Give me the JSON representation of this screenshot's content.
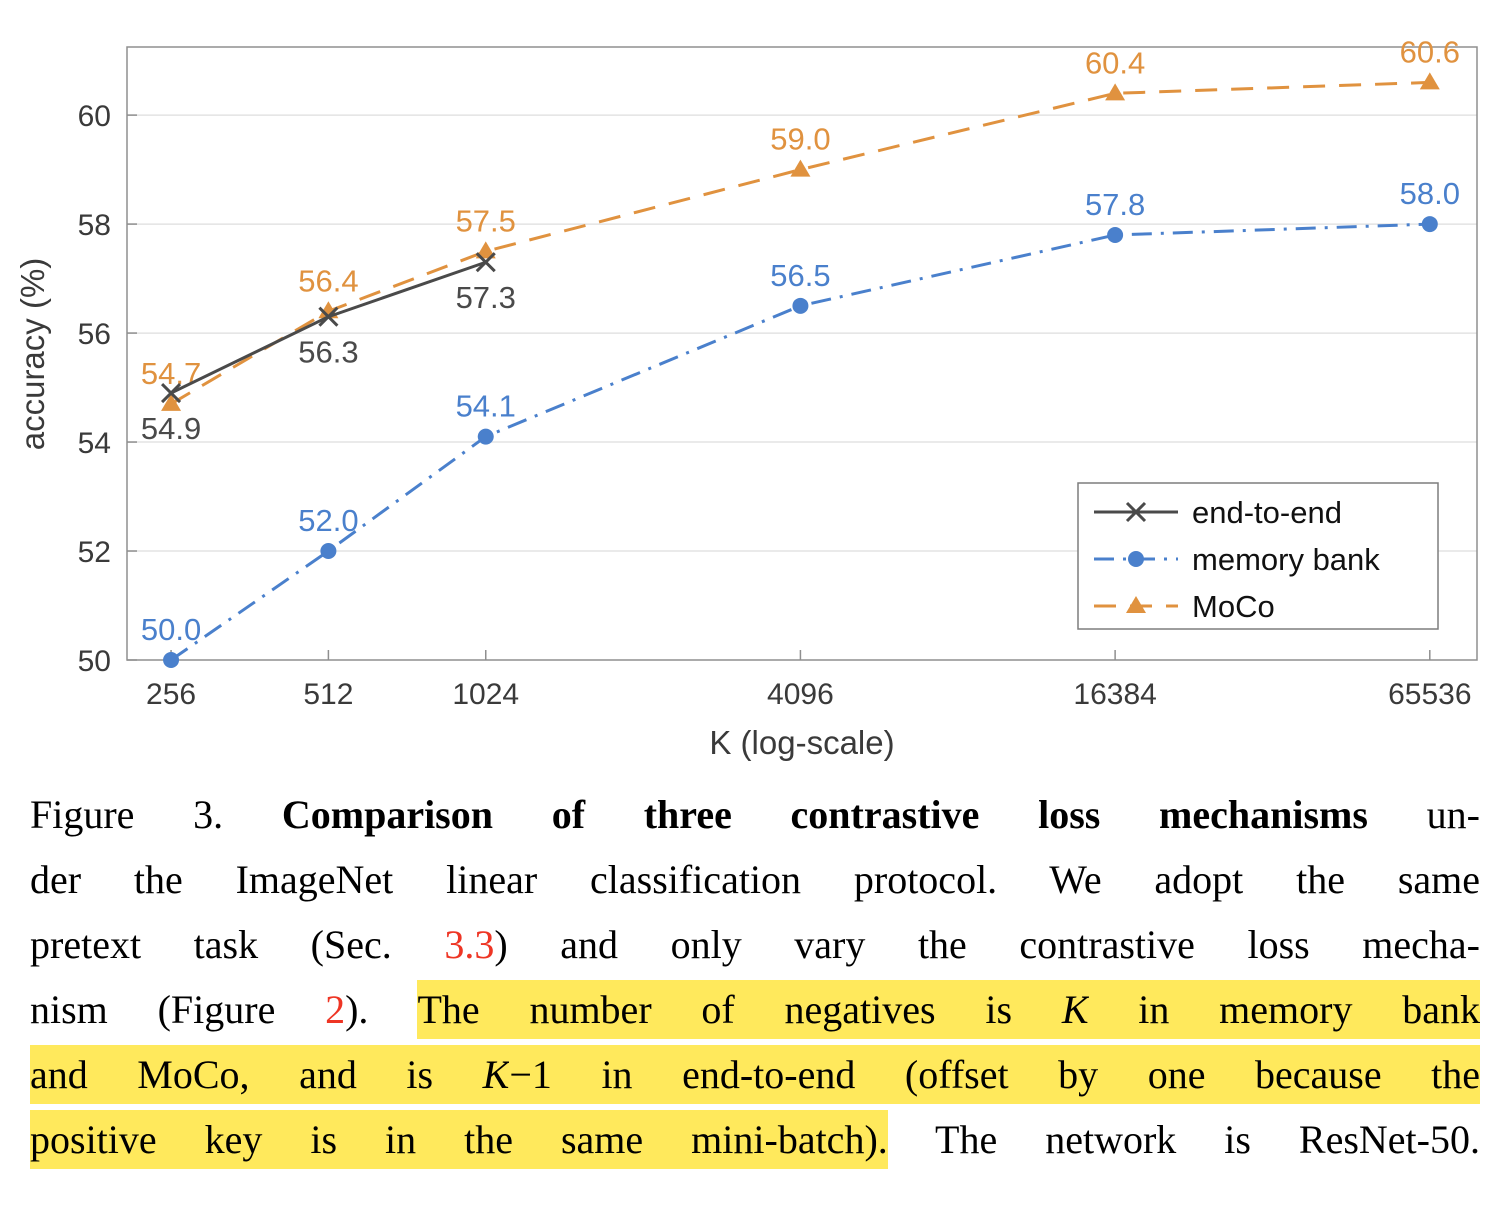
{
  "chart_data": {
    "type": "line",
    "title": "",
    "xlabel": "K (log-scale)",
    "ylabel": "accuracy (%)",
    "x_scale": "log2",
    "xlim_log2": [
      7.72,
      16.3
    ],
    "ylim": [
      50,
      61.25
    ],
    "xticks": [
      256,
      512,
      1024,
      4096,
      16384,
      65536
    ],
    "yticks": [
      50,
      52,
      54,
      56,
      58,
      60
    ],
    "grid": "horizontal",
    "legend_position": "inside-right-lower",
    "series": [
      {
        "name": "end-to-end",
        "color": "#4a4a4a",
        "line_style": "solid",
        "marker": "x",
        "label_side": "below",
        "x": [
          256,
          512,
          1024
        ],
        "values": [
          54.9,
          56.3,
          57.3
        ]
      },
      {
        "name": "memory bank",
        "color": "#4a80cc",
        "line_style": "dash-dot",
        "marker": "circle",
        "label_side": "above",
        "x": [
          256,
          512,
          1024,
          4096,
          16384,
          65536
        ],
        "values": [
          50.0,
          52.0,
          54.1,
          56.5,
          57.8,
          58.0
        ]
      },
      {
        "name": "MoCo",
        "color": "#e0923f",
        "line_style": "dashed",
        "marker": "triangle",
        "label_side": "above",
        "x": [
          256,
          512,
          1024,
          4096,
          16384,
          65536
        ],
        "values": [
          54.7,
          56.4,
          57.5,
          59.0,
          60.4,
          60.6
        ]
      }
    ]
  },
  "caption": {
    "highlight_color": "#ffe95c",
    "link_color": "#ee3524",
    "lines": [
      [
        {
          "t": "Figure 3. "
        },
        {
          "t": "Comparison of three contrastive loss mechanisms",
          "s": "bold"
        },
        {
          "t": " un-"
        }
      ],
      [
        {
          "t": "der the ImageNet linear classification protocol.  We adopt the same"
        }
      ],
      [
        {
          "t": "pretext task (Sec. "
        },
        {
          "t": "3.3",
          "s": "link"
        },
        {
          "t": ") and only vary the contrastive loss mecha-"
        }
      ],
      [
        {
          "t": "nism (Figure "
        },
        {
          "t": "2",
          "s": "link"
        },
        {
          "t": ").  "
        },
        {
          "t": "The number of negatives is ",
          "s": "hl"
        },
        {
          "t": "K",
          "s": "hl math"
        },
        {
          "t": " in memory bank",
          "s": "hl"
        }
      ],
      [
        {
          "t": "and MoCo, and is ",
          "s": "hl"
        },
        {
          "t": "K",
          "s": "hl math"
        },
        {
          "t": "−1 in end-to-end (offset by one because the",
          "s": "hl"
        }
      ],
      [
        {
          "t": "positive key is in the same mini-batch).",
          "s": "hl"
        },
        {
          "t": " The network is ResNet-50."
        }
      ]
    ]
  }
}
